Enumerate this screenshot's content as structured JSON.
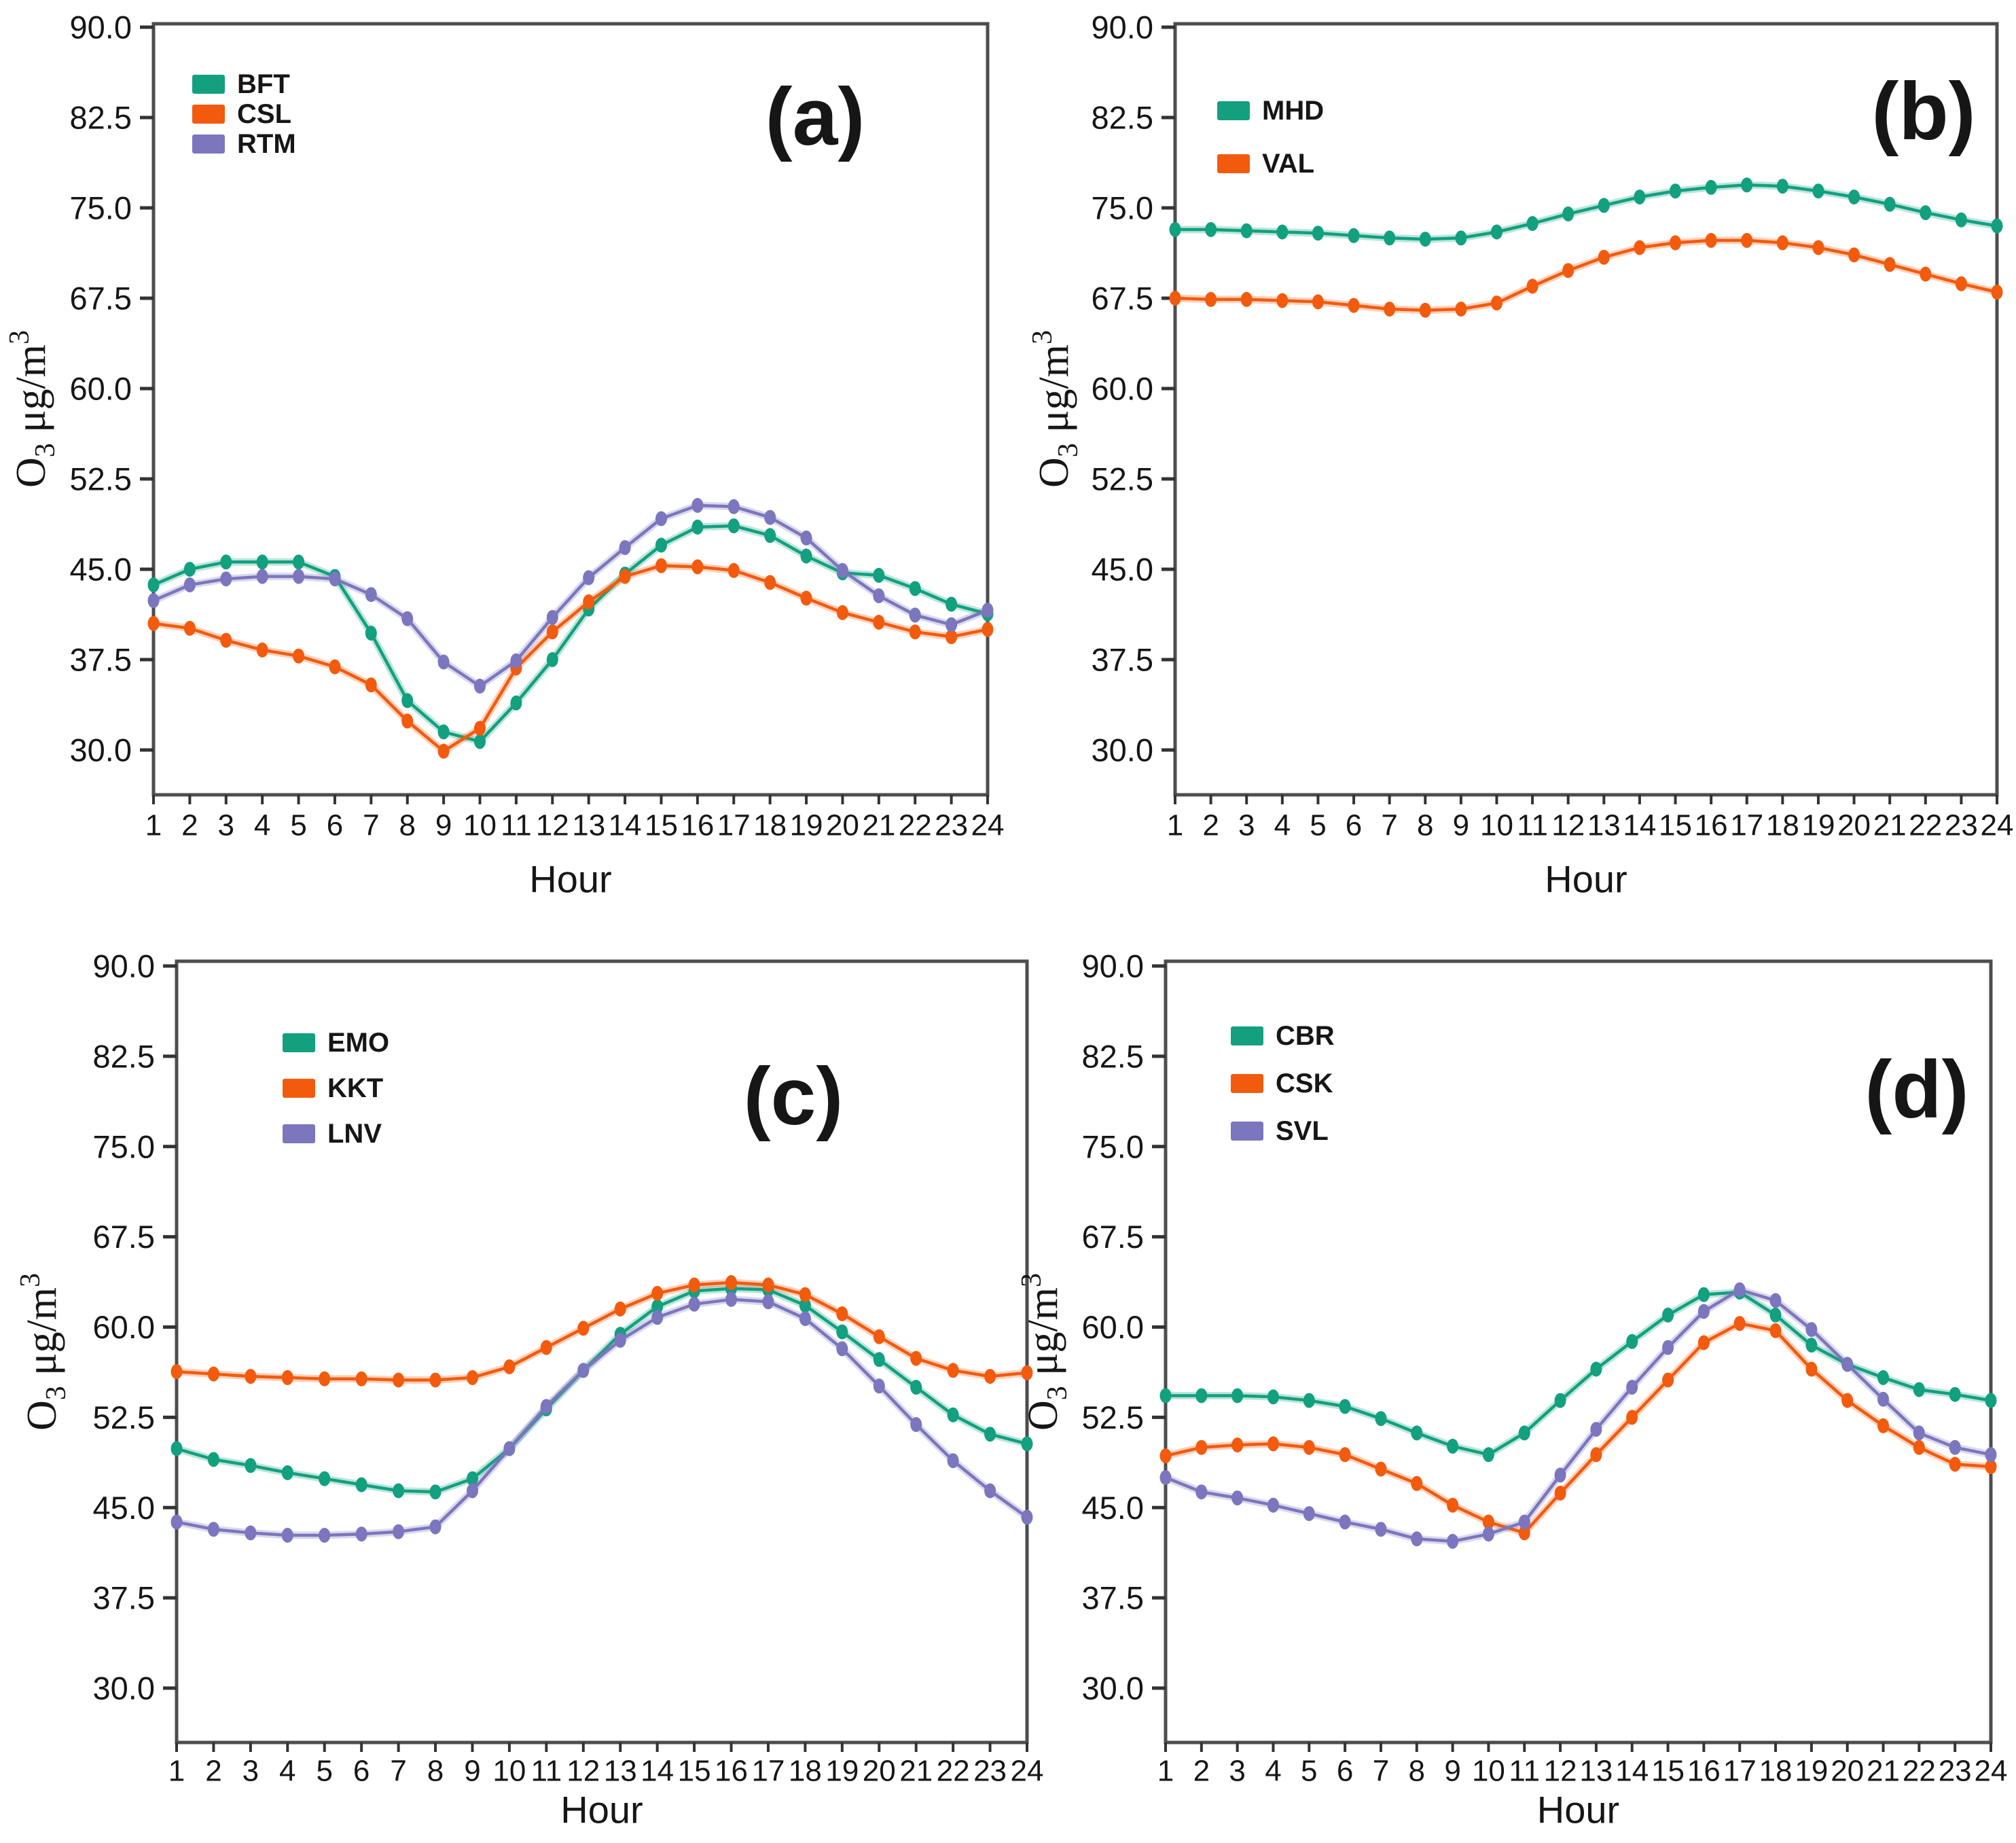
{
  "figure": {
    "colors": {
      "teal": "#12A07F",
      "orange": "#F25B0D",
      "purple": "#7B76BD"
    },
    "frame_color": "#4d4d4d",
    "ui": {
      "x_label": "Hour",
      "y_label": {
        "base": "O",
        "sub": "3",
        "mid": " μg/m",
        "sup": "3"
      },
      "y_ticks": [
        "90.0",
        "82.5",
        "75.0",
        "67.5",
        "60.0",
        "52.5",
        "45.0",
        "37.5",
        "30.0"
      ],
      "hours": [
        "1",
        "2",
        "3",
        "4",
        "5",
        "6",
        "7",
        "8",
        "9",
        "10",
        "11",
        "12",
        "13",
        "14",
        "15",
        "16",
        "17",
        "18",
        "19",
        "20",
        "21",
        "22",
        "23",
        "24"
      ]
    }
  },
  "chart_data": [
    {
      "id": "a",
      "letter": "(a)",
      "type": "line",
      "xlabel": "Hour",
      "ylabel": "O3 ug/m3",
      "xlim": [
        1,
        24
      ],
      "ylim": [
        30,
        90
      ],
      "grid": false,
      "legend_position": "top-left",
      "x": [
        1,
        2,
        3,
        4,
        5,
        6,
        7,
        8,
        9,
        10,
        11,
        12,
        13,
        14,
        15,
        16,
        17,
        18,
        19,
        20,
        21,
        22,
        23,
        24
      ],
      "series": [
        {
          "name": "BFT",
          "color": "teal",
          "values": [
            43.7,
            45.0,
            45.6,
            45.6,
            45.6,
            44.4,
            39.7,
            34.1,
            31.5,
            30.7,
            33.9,
            37.5,
            41.7,
            44.6,
            47.0,
            48.5,
            48.6,
            47.8,
            46.1,
            44.7,
            44.5,
            43.4,
            42.1,
            41.3
          ]
        },
        {
          "name": "CSL",
          "color": "orange",
          "values": [
            40.5,
            40.1,
            39.1,
            38.3,
            37.8,
            36.9,
            35.4,
            32.4,
            29.9,
            31.8,
            36.8,
            39.8,
            42.3,
            44.4,
            45.3,
            45.2,
            44.9,
            43.9,
            42.6,
            41.4,
            40.6,
            39.8,
            39.4,
            40.0
          ]
        },
        {
          "name": "RTM",
          "color": "purple",
          "values": [
            42.4,
            43.7,
            44.2,
            44.4,
            44.4,
            44.2,
            42.9,
            40.9,
            37.3,
            35.3,
            37.4,
            41.0,
            44.3,
            46.8,
            49.2,
            50.3,
            50.2,
            49.3,
            47.6,
            44.9,
            42.8,
            41.2,
            40.4,
            41.6
          ]
        }
      ]
    },
    {
      "id": "b",
      "letter": "(b)",
      "type": "line",
      "xlabel": "Hour",
      "ylabel": "O3 ug/m3",
      "xlim": [
        1,
        24
      ],
      "ylim": [
        30,
        90
      ],
      "grid": false,
      "legend_position": "top-left",
      "x": [
        1,
        2,
        3,
        4,
        5,
        6,
        7,
        8,
        9,
        10,
        11,
        12,
        13,
        14,
        15,
        16,
        17,
        18,
        19,
        20,
        21,
        22,
        23,
        24
      ],
      "series": [
        {
          "name": "MHD",
          "color": "teal",
          "values": [
            73.2,
            73.2,
            73.1,
            73.0,
            72.9,
            72.7,
            72.5,
            72.4,
            72.5,
            73.0,
            73.7,
            74.5,
            75.2,
            75.9,
            76.4,
            76.7,
            76.9,
            76.8,
            76.4,
            75.9,
            75.3,
            74.6,
            74.0,
            73.5
          ]
        },
        {
          "name": "VAL",
          "color": "orange",
          "values": [
            67.5,
            67.4,
            67.4,
            67.3,
            67.2,
            66.9,
            66.6,
            66.5,
            66.6,
            67.1,
            68.5,
            69.8,
            70.9,
            71.7,
            72.1,
            72.3,
            72.3,
            72.1,
            71.7,
            71.1,
            70.3,
            69.5,
            68.7,
            68.0
          ]
        }
      ]
    },
    {
      "id": "c",
      "letter": "(c)",
      "type": "line",
      "xlabel": "Hour",
      "ylabel": "O3 ug/m3",
      "xlim": [
        1,
        24
      ],
      "ylim": [
        30,
        90
      ],
      "grid": false,
      "legend_position": "top-left",
      "x": [
        1,
        2,
        3,
        4,
        5,
        6,
        7,
        8,
        9,
        10,
        11,
        12,
        13,
        14,
        15,
        16,
        17,
        18,
        19,
        20,
        21,
        22,
        23,
        24
      ],
      "series": [
        {
          "name": "EMO",
          "color": "teal",
          "values": [
            49.9,
            49.0,
            48.5,
            47.9,
            47.4,
            46.9,
            46.4,
            46.3,
            47.4,
            49.9,
            53.2,
            56.4,
            59.4,
            61.7,
            63.0,
            63.2,
            63.1,
            61.8,
            59.6,
            57.3,
            55.0,
            52.7,
            51.1,
            50.3
          ]
        },
        {
          "name": "KKT",
          "color": "orange",
          "values": [
            56.3,
            56.1,
            55.9,
            55.8,
            55.7,
            55.7,
            55.6,
            55.6,
            55.8,
            56.7,
            58.3,
            59.9,
            61.5,
            62.8,
            63.5,
            63.7,
            63.5,
            62.7,
            61.1,
            59.2,
            57.4,
            56.4,
            55.9,
            56.2
          ]
        },
        {
          "name": "LNV",
          "color": "purple",
          "values": [
            43.8,
            43.2,
            42.9,
            42.7,
            42.7,
            42.8,
            43.0,
            43.4,
            46.4,
            49.9,
            53.4,
            56.4,
            58.9,
            60.8,
            61.9,
            62.3,
            62.1,
            60.7,
            58.2,
            55.1,
            51.9,
            48.9,
            46.4,
            44.2
          ]
        }
      ]
    },
    {
      "id": "d",
      "letter": "(d)",
      "type": "line",
      "xlabel": "Hour",
      "ylabel": "O3 ug/m3",
      "xlim": [
        1,
        24
      ],
      "ylim": [
        30,
        90
      ],
      "grid": false,
      "legend_position": "top-left",
      "x": [
        1,
        2,
        3,
        4,
        5,
        6,
        7,
        8,
        9,
        10,
        11,
        12,
        13,
        14,
        15,
        16,
        17,
        18,
        19,
        20,
        21,
        22,
        23,
        24
      ],
      "series": [
        {
          "name": "CBR",
          "color": "teal",
          "values": [
            54.3,
            54.3,
            54.3,
            54.2,
            53.9,
            53.4,
            52.4,
            51.2,
            50.1,
            49.4,
            51.2,
            53.9,
            56.5,
            58.8,
            61.0,
            62.7,
            62.9,
            61.0,
            58.5,
            56.9,
            55.8,
            54.8,
            54.4,
            53.9
          ]
        },
        {
          "name": "CSK",
          "color": "orange",
          "values": [
            49.3,
            50.0,
            50.2,
            50.3,
            50.0,
            49.4,
            48.2,
            47.0,
            45.2,
            43.8,
            42.9,
            46.2,
            49.4,
            52.5,
            55.6,
            58.7,
            60.3,
            59.7,
            56.5,
            53.9,
            51.8,
            50.0,
            48.6,
            48.4
          ]
        },
        {
          "name": "SVL",
          "color": "purple",
          "values": [
            47.5,
            46.3,
            45.8,
            45.2,
            44.5,
            43.8,
            43.2,
            42.4,
            42.2,
            42.8,
            43.8,
            47.7,
            51.5,
            55.0,
            58.3,
            61.3,
            63.1,
            62.2,
            59.8,
            56.9,
            54.0,
            51.2,
            50.0,
            49.4
          ]
        }
      ]
    }
  ]
}
